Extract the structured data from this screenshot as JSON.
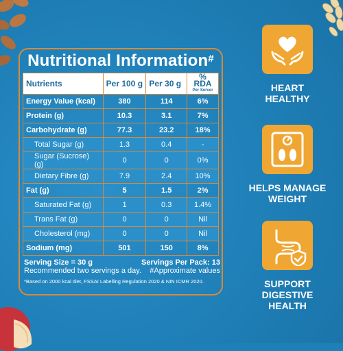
{
  "panel": {
    "title": "Nutritional Information",
    "title_mark": "#",
    "headers": {
      "nutrients": "Nutrients",
      "per100": "Per 100 g",
      "per30": "Per 30 g",
      "rda": "% RDA",
      "rda_sub": "Per Server"
    },
    "rows": [
      {
        "name": "Energy Value (kcal)",
        "per100": "380",
        "per30": "114",
        "rda": "6%"
      },
      {
        "name": "Protein (g)",
        "per100": "10.3",
        "per30": "3.1",
        "rda": "7%"
      },
      {
        "name": "Carbohydrate (g)",
        "per100": "77.3",
        "per30": "23.2",
        "rda": "18%"
      },
      {
        "name": "Total Sugar (g)",
        "per100": "1.3",
        "per30": "0.4",
        "rda": "-"
      },
      {
        "name": "Sugar (Sucrose) (g)",
        "per100": "0",
        "per30": "0",
        "rda": "0%"
      },
      {
        "name": "Dietary Fibre (g)",
        "per100": "7.9",
        "per30": "2.4",
        "rda": "10%"
      },
      {
        "name": "Fat (g)",
        "per100": "5",
        "per30": "1.5",
        "rda": "2%"
      },
      {
        "name": "Saturated Fat (g)",
        "per100": "1",
        "per30": "0.3",
        "rda": "1.4%"
      },
      {
        "name": "Trans Fat (g)",
        "per100": "0",
        "per30": "0",
        "rda": "Nil"
      },
      {
        "name": "Cholesterol (mg)",
        "per100": "0",
        "per30": "0",
        "rda": "Nil"
      },
      {
        "name": "Sodium (mg)",
        "per100": "501",
        "per30": "150",
        "rda": "8%"
      }
    ],
    "serving_size": "Serving Size = 30 g",
    "servings_per_pack": "Servings Per Pack: 13",
    "recommendation": "Recommended two servings a day.",
    "approx_note": "#Approximate values",
    "footnote": "*Based on 2000 kcal diet, FSSAI Labelling Regulation 2020 & NIN ICMR 2020."
  },
  "features": [
    {
      "label": "HEART\nHEALTHY",
      "icon": "heart-hands-icon"
    },
    {
      "label": "HELPS MANAGE\nWEIGHT",
      "icon": "weighing-scale-icon"
    },
    {
      "label": "SUPPORT\nDIGESTIVE HEALTH",
      "icon": "digestive-shield-icon"
    }
  ],
  "colors": {
    "background": "#1f7fb7",
    "border": "#d98a3a",
    "icon_tile": "#f0a632",
    "header_text": "#1f6a9a"
  }
}
